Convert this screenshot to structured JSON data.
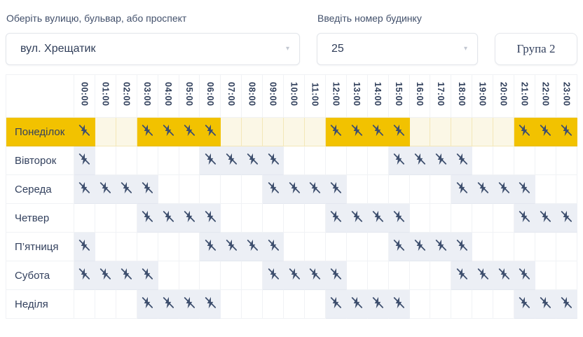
{
  "form": {
    "street": {
      "label": "Оберіть вулицю, бульвар, або проспект",
      "value": "вул. Хрещатик"
    },
    "building": {
      "label": "Введіть номер будинку",
      "value": "25"
    },
    "group_label": "Група 2"
  },
  "icons": {
    "outage": "power-off-icon",
    "dropdown": "chevron-down-icon"
  },
  "colors": {
    "highlight": "#F2C200",
    "highlight_soft": "#FBF7E6",
    "outage_cell": "#ECEFF5",
    "text": "#33415E",
    "icon": "#3E4F6E",
    "border": "#F0F2F5"
  },
  "schedule": {
    "hours": [
      "00:00",
      "01:00",
      "02:00",
      "03:00",
      "04:00",
      "05:00",
      "06:00",
      "07:00",
      "08:00",
      "09:00",
      "10:00",
      "11:00",
      "12:00",
      "13:00",
      "14:00",
      "15:00",
      "16:00",
      "17:00",
      "18:00",
      "19:00",
      "20:00",
      "21:00",
      "22:00",
      "23:00"
    ],
    "days": [
      {
        "label": "Понеділок",
        "highlighted": true,
        "outage_hours": [
          0,
          3,
          4,
          5,
          6,
          12,
          13,
          14,
          15,
          21,
          22,
          23
        ]
      },
      {
        "label": "Вівторок",
        "highlighted": false,
        "outage_hours": [
          0,
          6,
          7,
          8,
          9,
          15,
          16,
          17,
          18
        ]
      },
      {
        "label": "Середа",
        "highlighted": false,
        "outage_hours": [
          0,
          1,
          2,
          3,
          9,
          10,
          11,
          12,
          18,
          19,
          20,
          21
        ]
      },
      {
        "label": "Четвер",
        "highlighted": false,
        "outage_hours": [
          3,
          4,
          5,
          6,
          12,
          13,
          14,
          15,
          21,
          22,
          23
        ]
      },
      {
        "label": "П’ятниця",
        "highlighted": false,
        "outage_hours": [
          0,
          6,
          7,
          8,
          9,
          15,
          16,
          17,
          18
        ]
      },
      {
        "label": "Субота",
        "highlighted": false,
        "outage_hours": [
          0,
          1,
          2,
          3,
          9,
          10,
          11,
          12,
          18,
          19,
          20,
          21
        ]
      },
      {
        "label": "Неділя",
        "highlighted": false,
        "outage_hours": [
          3,
          4,
          5,
          6,
          12,
          13,
          14,
          15,
          21,
          22,
          23
        ]
      }
    ]
  }
}
